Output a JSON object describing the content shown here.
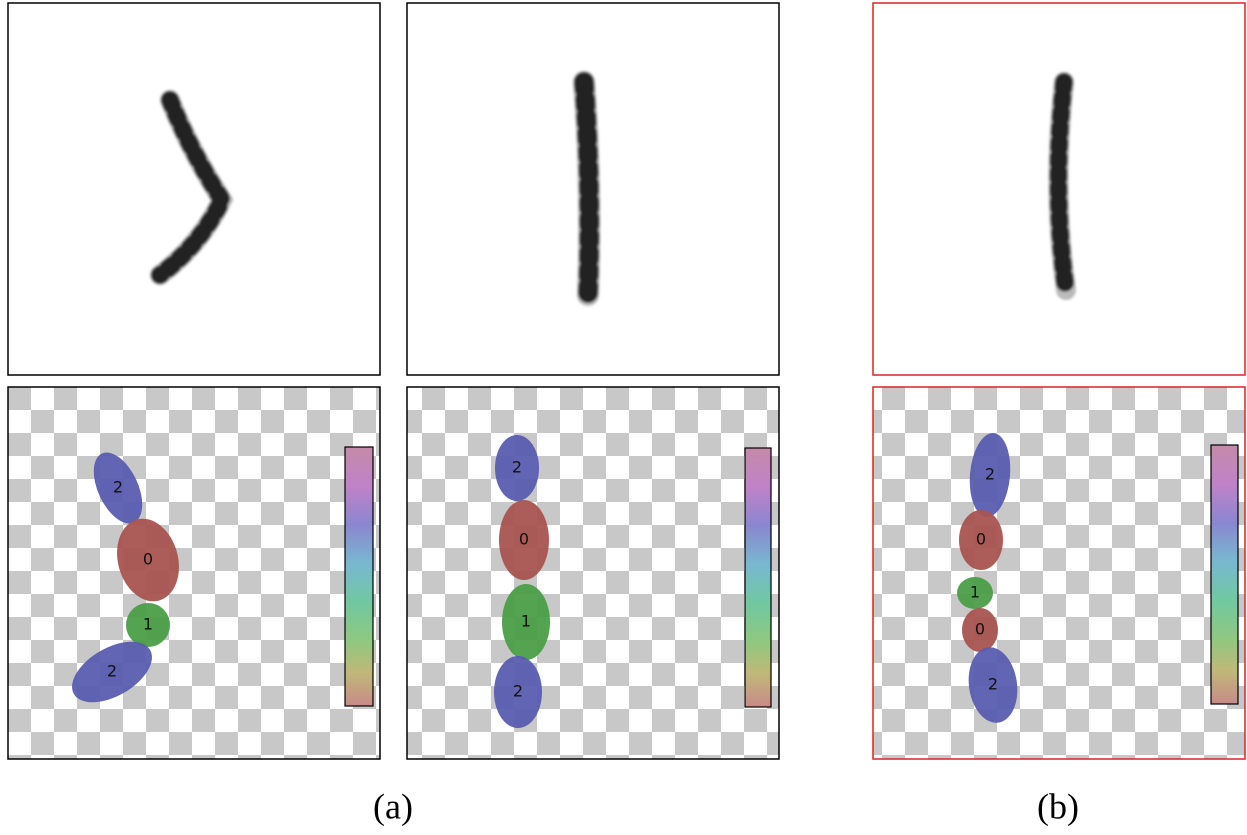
{
  "panels": [
    {
      "segments": [
        "2",
        "0",
        "1",
        "2"
      ]
    },
    {
      "segments": [
        "2",
        "0",
        "1",
        "2"
      ]
    },
    {
      "segments": [
        "2",
        "0",
        "1",
        "0",
        "2"
      ]
    }
  ],
  "captions": [
    "(a)",
    "(b)"
  ]
}
